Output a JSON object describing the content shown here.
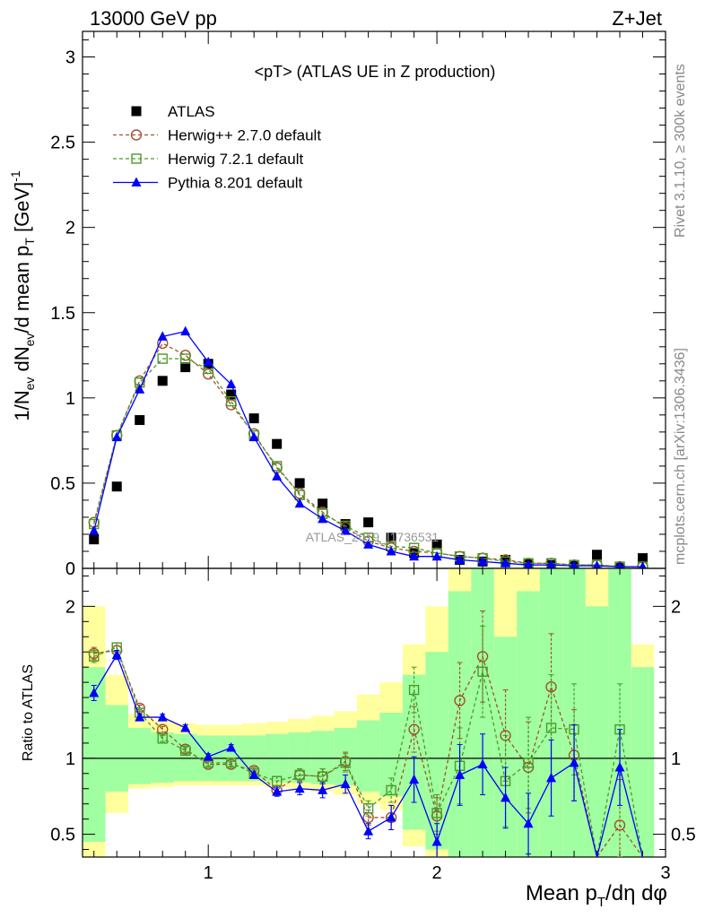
{
  "header": {
    "left": "13000 GeV pp",
    "right": "Z+Jet"
  },
  "side_text": {
    "rivet": "Rivet 3.1.10, ≥ 300k events",
    "mcplots": "mcplots.cern.ch [arXiv:1306.3436]"
  },
  "watermark": "ATLAS_2019_I1736531",
  "colors": {
    "atlas": "#000000",
    "herwigpp": "#a0522d",
    "herwig7": "#4a9a2a",
    "pythia": "#0000ff",
    "band_stat": "#a0ffa0",
    "band_total": "#ffff9e"
  },
  "chart_data": [
    {
      "type": "scatter",
      "panel": "main",
      "title": "<pT> (ATLAS UE in Z production)",
      "ylabel": "1/N_ev dN_ev/d mean p_T [GeV]^-1",
      "xlim": [
        0.45,
        3.0
      ],
      "ylim": [
        0,
        3.15
      ],
      "yticks": [
        0,
        0.5,
        1,
        1.5,
        2,
        2.5,
        3
      ],
      "ytick_labels": [
        "0",
        "0.5",
        "1",
        "1.5",
        "2",
        "2.5",
        "3"
      ],
      "x": [
        0.5,
        0.6,
        0.7,
        0.8,
        0.9,
        1.0,
        1.1,
        1.2,
        1.3,
        1.4,
        1.5,
        1.6,
        1.7,
        1.8,
        1.9,
        2.0,
        2.1,
        2.2,
        2.3,
        2.4,
        2.5,
        2.6,
        2.7,
        2.8,
        2.9
      ],
      "legend": [
        "ATLAS",
        "Herwig++ 2.7.0 default",
        "Herwig 7.2.1 default",
        "Pythia 8.201 default"
      ],
      "series": [
        {
          "name": "ATLAS",
          "values": [
            0.17,
            0.48,
            0.87,
            1.1,
            1.18,
            1.2,
            1.02,
            0.88,
            0.73,
            0.5,
            0.38,
            0.26,
            0.27,
            0.18,
            0.09,
            0.14,
            0.05,
            0.04,
            0.05,
            0.03,
            0.02,
            0.02,
            0.08,
            0.01,
            0.06
          ]
        },
        {
          "name": "Herwig++ 2.7.0 default",
          "values": [
            0.27,
            0.78,
            1.1,
            1.32,
            1.25,
            1.14,
            0.96,
            0.79,
            0.59,
            0.44,
            0.33,
            0.24,
            0.16,
            0.12,
            0.1,
            0.09,
            0.07,
            0.06,
            0.05,
            0.03,
            0.03,
            0.02,
            0.02,
            0.01,
            0.01
          ]
        },
        {
          "name": "Herwig 7.2.1 default",
          "values": [
            0.26,
            0.78,
            1.09,
            1.23,
            1.23,
            1.17,
            0.98,
            0.78,
            0.6,
            0.43,
            0.32,
            0.25,
            0.18,
            0.13,
            0.12,
            0.09,
            0.07,
            0.06,
            0.04,
            0.03,
            0.03,
            0.02,
            0.02,
            0.01,
            0.01
          ]
        },
        {
          "name": "Pythia 8.201 default",
          "values": [
            0.22,
            0.77,
            1.05,
            1.36,
            1.39,
            1.21,
            1.08,
            0.77,
            0.54,
            0.38,
            0.29,
            0.22,
            0.14,
            0.1,
            0.07,
            0.07,
            0.05,
            0.04,
            0.03,
            0.02,
            0.02,
            0.015,
            0.015,
            0.01,
            0.01
          ]
        }
      ]
    },
    {
      "type": "scatter",
      "panel": "ratio",
      "xlabel": "Mean p_T/dη dφ",
      "ylabel": "Ratio to ATLAS",
      "xlim": [
        0.45,
        3.0
      ],
      "ylim": [
        0.35,
        2.25
      ],
      "xticks": [
        1,
        2,
        3
      ],
      "xtick_labels": [
        "1",
        "2",
        "3"
      ],
      "yticks": [
        0.5,
        1,
        2
      ],
      "ytick_labels": [
        "0.5",
        "1",
        "2"
      ],
      "x": [
        0.5,
        0.6,
        0.7,
        0.8,
        0.9,
        1.0,
        1.1,
        1.2,
        1.3,
        1.4,
        1.5,
        1.6,
        1.7,
        1.8,
        1.9,
        2.0,
        2.1,
        2.2,
        2.3,
        2.4,
        2.5,
        2.6,
        2.7,
        2.8,
        2.9
      ],
      "band_stat": {
        "lo": [
          0.45,
          0.78,
          0.83,
          0.84,
          0.85,
          0.85,
          0.85,
          0.85,
          0.84,
          0.84,
          0.83,
          0.82,
          0.78,
          0.75,
          0.53,
          0.4,
          0.3,
          0.3,
          0.3,
          0.3,
          0.3,
          0.3,
          0.3,
          0.3,
          0.3
        ],
        "hi": [
          1.6,
          1.35,
          1.2,
          1.17,
          1.16,
          1.15,
          1.15,
          1.15,
          1.16,
          1.17,
          1.18,
          1.2,
          1.25,
          1.3,
          1.55,
          1.7,
          2.1,
          2.25,
          1.8,
          2.1,
          2.25,
          2.25,
          2.0,
          2.25,
          1.6
        ]
      },
      "band_total": {
        "lo": [
          0.35,
          0.64,
          0.8,
          0.81,
          0.82,
          0.82,
          0.82,
          0.82,
          0.81,
          0.8,
          0.78,
          0.76,
          0.7,
          0.66,
          0.42,
          0.3,
          0.3,
          0.3,
          0.35,
          0.3,
          0.3,
          0.3,
          0.3,
          0.3,
          0.3
        ],
        "hi": [
          2.0,
          1.55,
          1.29,
          1.25,
          1.23,
          1.22,
          1.22,
          1.23,
          1.24,
          1.26,
          1.28,
          1.31,
          1.42,
          1.5,
          1.75,
          2.0,
          2.25,
          2.25,
          2.25,
          2.25,
          2.25,
          2.25,
          2.25,
          2.25,
          1.75
        ]
      },
      "series": [
        {
          "name": "Herwig++ 2.7.0 default",
          "values": [
            1.69,
            1.71,
            1.33,
            1.19,
            1.06,
            0.96,
            0.96,
            0.92,
            0.79,
            0.89,
            0.88,
            0.98,
            0.61,
            0.61,
            1.19,
            0.62,
            1.38,
            1.67,
            1.15,
            0.94,
            1.47,
            1.02,
            0.3,
            0.56,
            0.3
          ],
          "err": [
            0.04,
            0.03,
            0.02,
            0.02,
            0.02,
            0.02,
            0.02,
            0.02,
            0.03,
            0.04,
            0.05,
            0.06,
            0.05,
            0.08,
            0.15,
            0.12,
            0.25,
            0.3,
            0.3,
            0.3,
            0.35,
            0.3,
            0.3,
            0.3,
            0.3
          ]
        },
        {
          "name": "Herwig 7.2.1 default",
          "values": [
            1.67,
            1.73,
            1.3,
            1.13,
            1.05,
            0.97,
            0.97,
            0.9,
            0.85,
            0.89,
            0.88,
            0.97,
            0.67,
            0.79,
            1.45,
            0.64,
            0.95,
            1.57,
            0.85,
            0.97,
            1.2,
            1.19,
            0.3,
            1.19,
            0.3
          ],
          "err": [
            0.04,
            0.03,
            0.02,
            0.02,
            0.02,
            0.02,
            0.02,
            0.02,
            0.03,
            0.04,
            0.05,
            0.06,
            0.05,
            0.08,
            0.15,
            0.12,
            0.25,
            0.3,
            0.3,
            0.3,
            0.35,
            0.3,
            0.3,
            0.3,
            0.3
          ]
        },
        {
          "name": "Pythia 8.201 default",
          "values": [
            1.43,
            1.68,
            1.27,
            1.27,
            1.2,
            1.01,
            1.07,
            0.89,
            0.78,
            0.8,
            0.79,
            0.83,
            0.52,
            0.61,
            0.86,
            0.45,
            0.89,
            0.96,
            0.74,
            0.57,
            0.87,
            0.97,
            0.3,
            0.94,
            0.3
          ],
          "err": [
            0.05,
            0.03,
            0.02,
            0.02,
            0.02,
            0.02,
            0.02,
            0.02,
            0.03,
            0.04,
            0.05,
            0.06,
            0.05,
            0.08,
            0.15,
            0.12,
            0.2,
            0.2,
            0.2,
            0.2,
            0.25,
            0.25,
            0.3,
            0.25,
            0.3
          ]
        }
      ]
    }
  ]
}
